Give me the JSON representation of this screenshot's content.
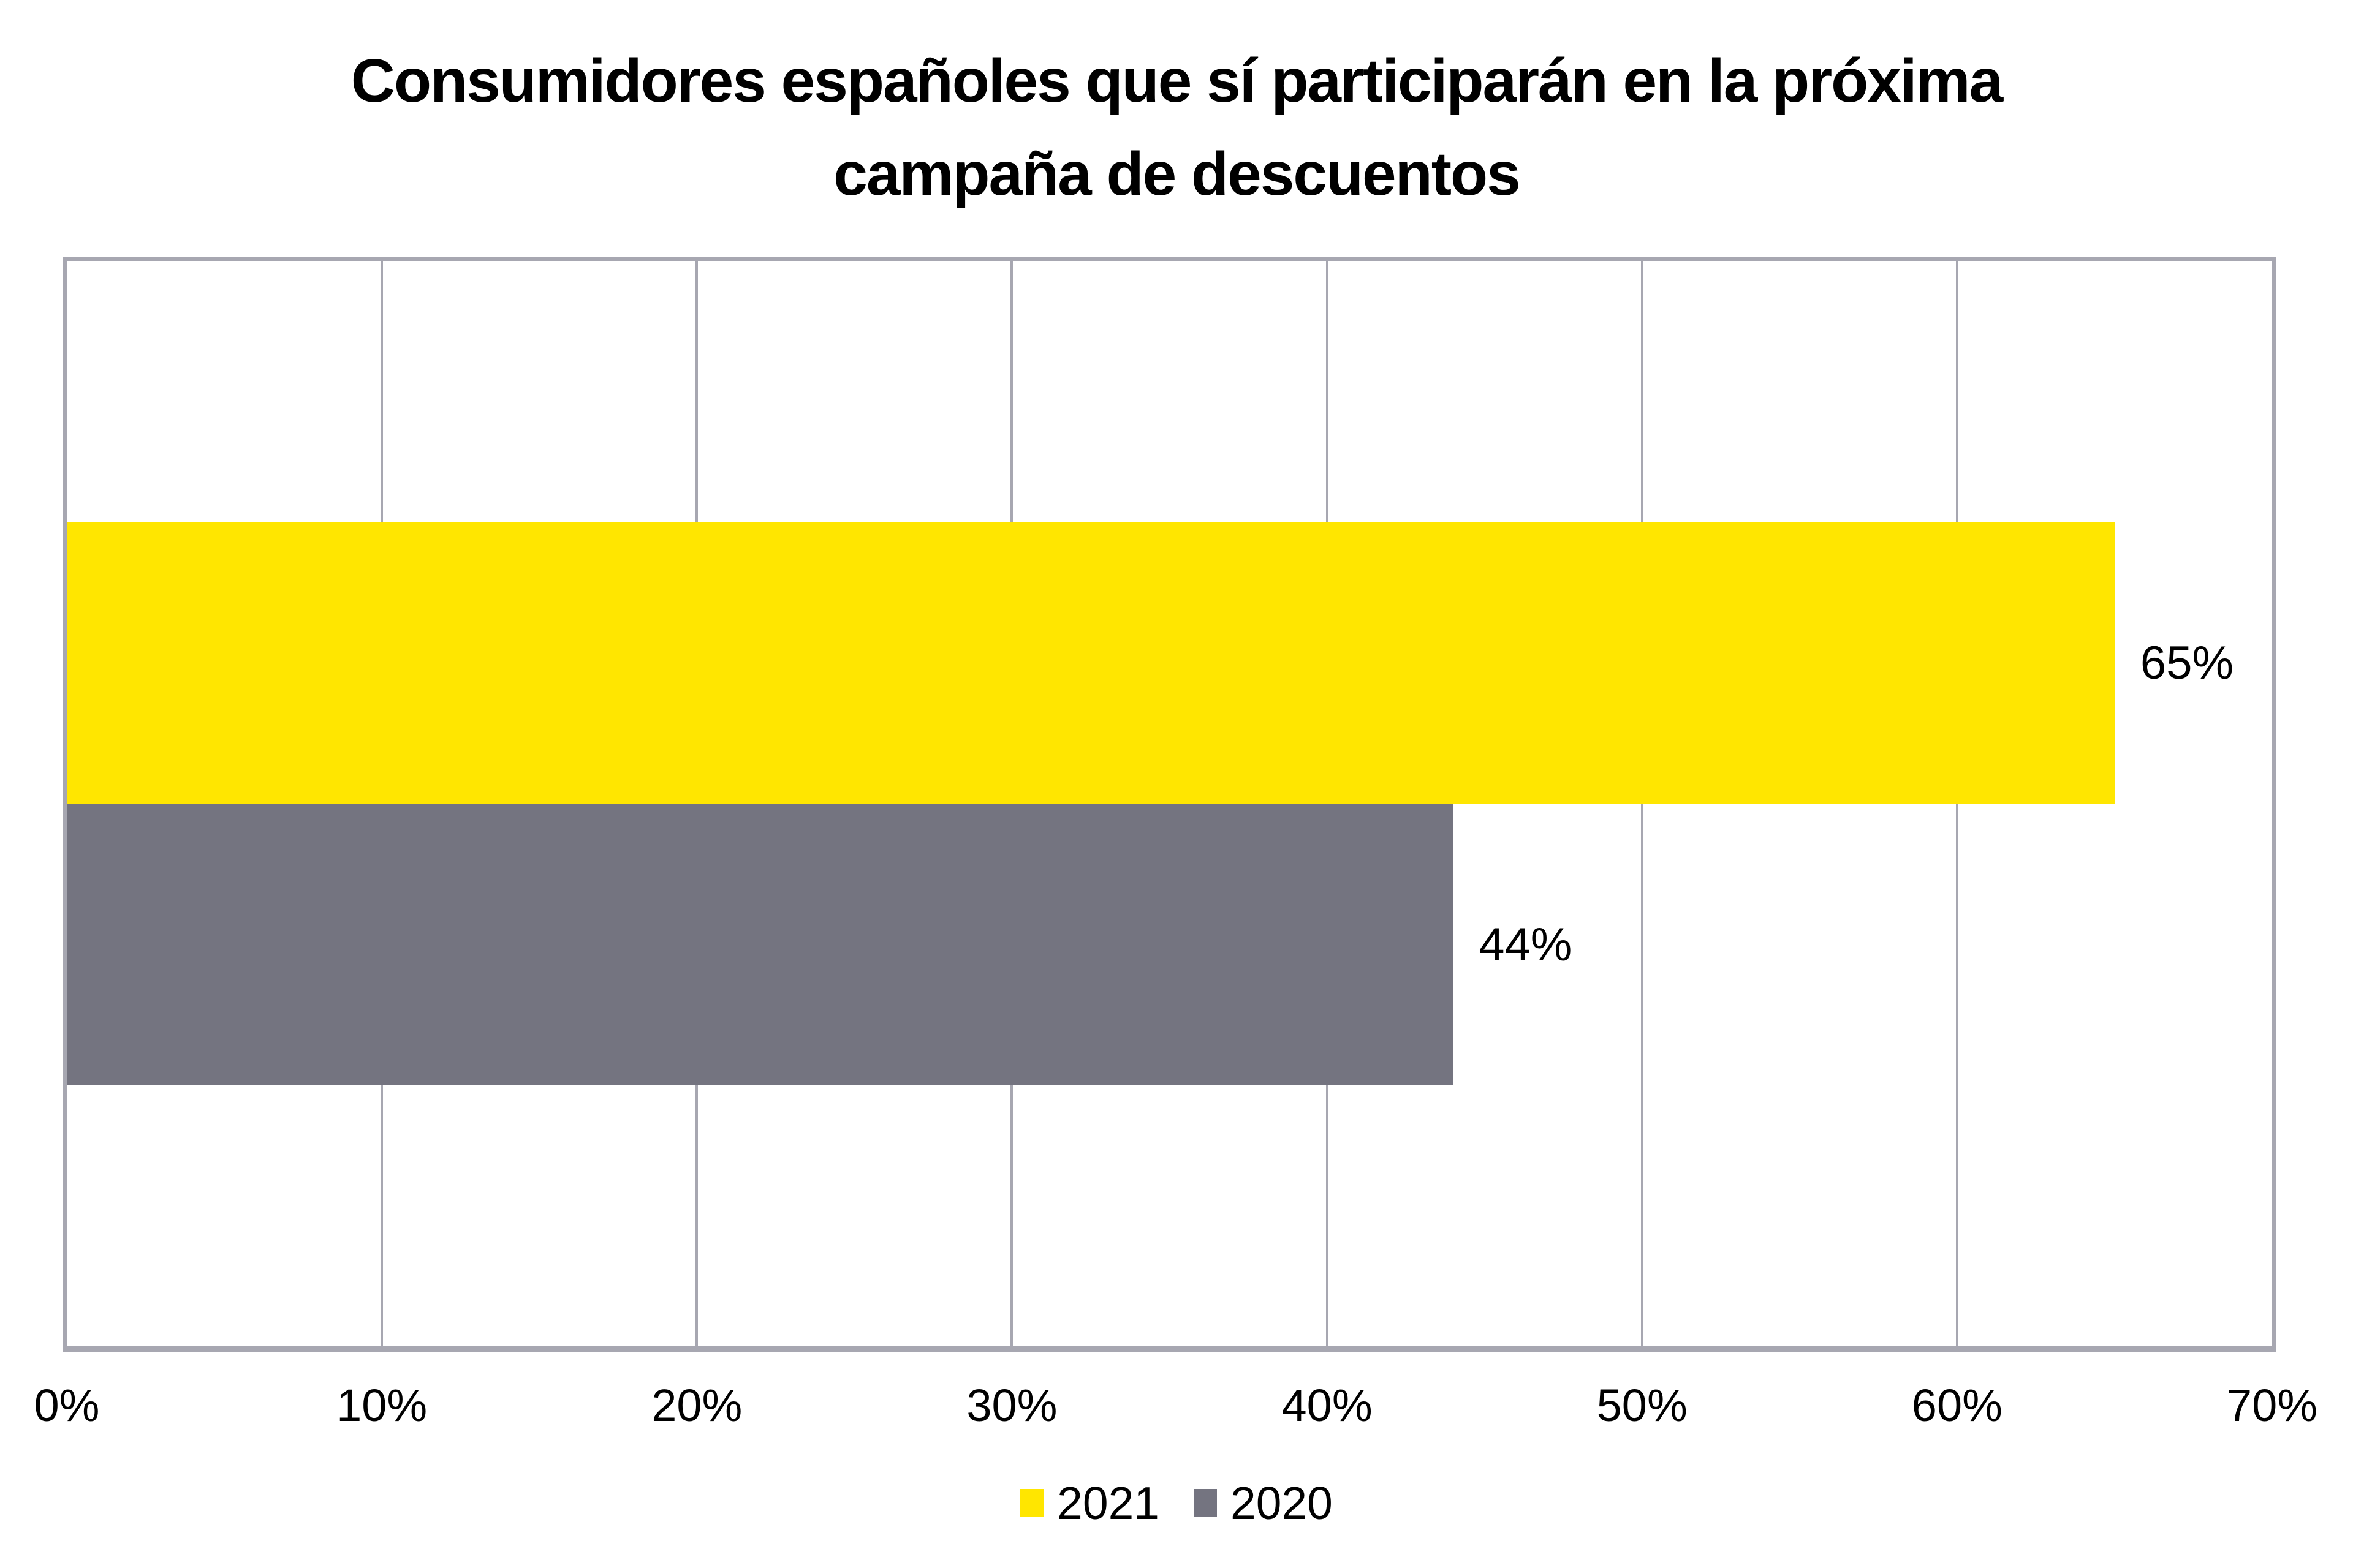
{
  "title": {
    "line1": "Consumidores españoles que sí participarán en la próxima",
    "line2": "campaña de descuentos"
  },
  "chart_data": {
    "type": "bar",
    "orientation": "horizontal",
    "title": "Consumidores españoles que sí participarán en la próxima campaña de descuentos",
    "categories": [
      ""
    ],
    "series": [
      {
        "name": "2021",
        "value": 65,
        "label": "65%",
        "color": "#ffe600"
      },
      {
        "name": "2020",
        "value": 44,
        "label": "44%",
        "color": "#747480"
      }
    ],
    "xlabel": "",
    "ylabel": "",
    "xlim": [
      0,
      70
    ],
    "x_tick_labels": [
      "0%",
      "10%",
      "20%",
      "30%",
      "40%",
      "50%",
      "60%",
      "70%"
    ],
    "grid": true,
    "legend_position": "bottom",
    "colors": {
      "bar_2021": "#ffe600",
      "bar_2020": "#747480",
      "gridline": "#a7a7b1",
      "text": "#000000",
      "background": "#ffffff"
    }
  }
}
